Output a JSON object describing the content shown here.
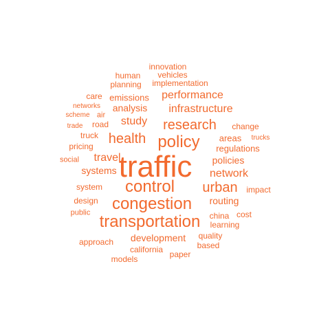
{
  "word_color": "#F26A2E",
  "words": [
    {
      "text": "traffic",
      "rank": 1
    },
    {
      "text": "congestion",
      "rank": 2
    },
    {
      "text": "control",
      "rank": 2
    },
    {
      "text": "policy",
      "rank": 2
    },
    {
      "text": "transportation",
      "rank": 2
    },
    {
      "text": "research",
      "rank": 3
    },
    {
      "text": "health",
      "rank": 3
    },
    {
      "text": "urban",
      "rank": 3
    },
    {
      "text": "infrastructure",
      "rank": 4
    },
    {
      "text": "network",
      "rank": 4
    },
    {
      "text": "performance",
      "rank": 4
    },
    {
      "text": "travel",
      "rank": 4
    },
    {
      "text": "study",
      "rank": 4
    },
    {
      "text": "analysis",
      "rank": 5
    },
    {
      "text": "policies",
      "rank": 5
    },
    {
      "text": "development",
      "rank": 5
    },
    {
      "text": "routing",
      "rank": 5
    },
    {
      "text": "systems",
      "rank": 5
    },
    {
      "text": "emissions",
      "rank": 6
    },
    {
      "text": "regulations",
      "rank": 6
    },
    {
      "text": "areas",
      "rank": 6
    },
    {
      "text": "innovation",
      "rank": 7
    },
    {
      "text": "vehicles",
      "rank": 7
    },
    {
      "text": "human",
      "rank": 7
    },
    {
      "text": "implementation",
      "rank": 7
    },
    {
      "text": "planning",
      "rank": 7
    },
    {
      "text": "care",
      "rank": 7
    },
    {
      "text": "road",
      "rank": 7
    },
    {
      "text": "truck",
      "rank": 7
    },
    {
      "text": "change",
      "rank": 7
    },
    {
      "text": "pricing",
      "rank": 7
    },
    {
      "text": "system",
      "rank": 7
    },
    {
      "text": "design",
      "rank": 7
    },
    {
      "text": "china",
      "rank": 7
    },
    {
      "text": "learning",
      "rank": 7
    },
    {
      "text": "approach",
      "rank": 7
    },
    {
      "text": "california",
      "rank": 7
    },
    {
      "text": "quality",
      "rank": 7
    },
    {
      "text": "based",
      "rank": 7
    },
    {
      "text": "paper",
      "rank": 7
    },
    {
      "text": "models",
      "rank": 7
    },
    {
      "text": "cost",
      "rank": 7
    },
    {
      "text": "impact",
      "rank": 7
    },
    {
      "text": "air",
      "rank": 8
    },
    {
      "text": "social",
      "rank": 8
    },
    {
      "text": "public",
      "rank": 8
    },
    {
      "text": "networks",
      "rank": 9
    },
    {
      "text": "scheme",
      "rank": 9
    },
    {
      "text": "trade",
      "rank": 9
    },
    {
      "text": "trucks",
      "rank": 9
    }
  ]
}
